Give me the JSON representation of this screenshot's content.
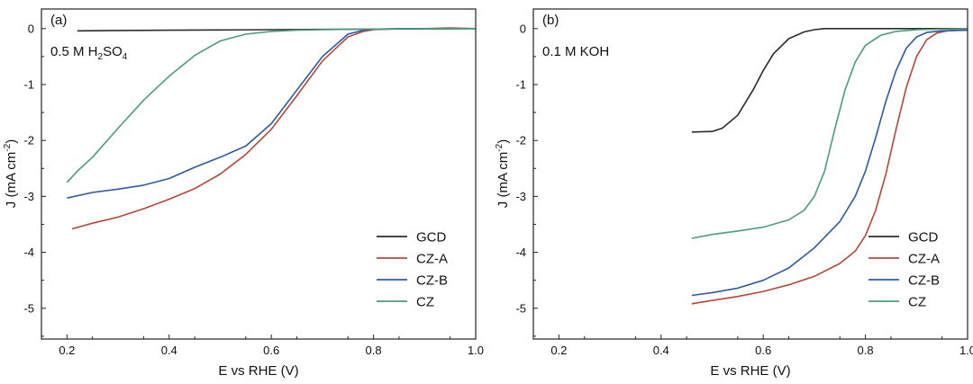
{
  "chart_data": [
    {
      "type": "line",
      "panel": "(a)",
      "annotation": {
        "base": "0.5 M H",
        "sub1": "2",
        "mid": "SO",
        "sub2": "4"
      },
      "xlabel": "E vs RHE (V)",
      "ylabel": {
        "base": "J (mA cm",
        "sup": "-2",
        "tail": ")"
      },
      "xlim": [
        0.15,
        1.0
      ],
      "ylim": [
        -5.55,
        0.35
      ],
      "xticks": [
        0.2,
        0.4,
        0.6,
        0.8,
        1.0
      ],
      "xtick_labels": [
        "0.2",
        "0.4",
        "0.6",
        "0.8",
        "1.0"
      ],
      "yticks": [
        0,
        -1,
        -2,
        -3,
        -4,
        -5
      ],
      "ytick_labels": [
        "0",
        "-1",
        "-2",
        "-3",
        "-4",
        "-5"
      ],
      "legend_position": "bottom-right",
      "series": [
        {
          "name": "GCD",
          "color": "#2b2b2b",
          "x": [
            0.22,
            0.3,
            0.4,
            0.5,
            0.6,
            0.7,
            0.8,
            0.9,
            1.0
          ],
          "y": [
            -0.04,
            -0.035,
            -0.03,
            -0.025,
            -0.02,
            -0.015,
            -0.01,
            -0.005,
            0.0
          ]
        },
        {
          "name": "CZ-A",
          "color": "#b5473a",
          "x": [
            0.21,
            0.25,
            0.3,
            0.35,
            0.4,
            0.45,
            0.5,
            0.55,
            0.6,
            0.65,
            0.7,
            0.75,
            0.78,
            0.8,
            0.85,
            0.9,
            0.95,
            1.0
          ],
          "y": [
            -3.58,
            -3.48,
            -3.37,
            -3.22,
            -3.05,
            -2.86,
            -2.6,
            -2.25,
            -1.8,
            -1.2,
            -0.58,
            -0.15,
            -0.05,
            -0.02,
            0.0,
            0.0,
            0.01,
            0.0
          ]
        },
        {
          "name": "CZ-B",
          "color": "#2f59a0",
          "x": [
            0.2,
            0.25,
            0.3,
            0.35,
            0.4,
            0.45,
            0.5,
            0.55,
            0.6,
            0.65,
            0.7,
            0.75,
            0.78,
            0.8,
            0.85,
            0.9,
            0.95,
            1.0
          ],
          "y": [
            -3.03,
            -2.93,
            -2.87,
            -2.8,
            -2.68,
            -2.48,
            -2.3,
            -2.1,
            -1.7,
            -1.1,
            -0.5,
            -0.1,
            -0.03,
            -0.01,
            0.0,
            0.0,
            0.0,
            0.0
          ]
        },
        {
          "name": "CZ",
          "color": "#4e9a7c",
          "x": [
            0.2,
            0.22,
            0.25,
            0.3,
            0.35,
            0.4,
            0.45,
            0.5,
            0.55,
            0.6,
            0.65,
            0.7,
            0.8,
            0.9,
            1.0
          ],
          "y": [
            -2.75,
            -2.55,
            -2.3,
            -1.78,
            -1.28,
            -0.85,
            -0.48,
            -0.22,
            -0.1,
            -0.05,
            -0.03,
            -0.02,
            -0.01,
            0.0,
            0.0
          ]
        }
      ]
    },
    {
      "type": "line",
      "panel": "(b)",
      "annotation": {
        "text": "0.1 M KOH"
      },
      "xlabel": "E vs RHE (V)",
      "ylabel": {
        "base": "J (mA cm",
        "sup": "-2",
        "tail": ")"
      },
      "xlim": [
        0.15,
        1.0
      ],
      "ylim": [
        -5.55,
        0.35
      ],
      "xticks": [
        0.2,
        0.4,
        0.6,
        0.8,
        1.0
      ],
      "xtick_labels": [
        "0.2",
        "0.4",
        "0.6",
        "0.8",
        "1.0"
      ],
      "yticks": [
        0,
        -1,
        -2,
        -3,
        -4,
        -5
      ],
      "ytick_labels": [
        "0",
        "-1",
        "-2",
        "-3",
        "-4",
        "-5"
      ],
      "legend_position": "bottom-right",
      "series": [
        {
          "name": "GCD",
          "color": "#2b2b2b",
          "x": [
            0.46,
            0.5,
            0.52,
            0.55,
            0.58,
            0.6,
            0.62,
            0.65,
            0.68,
            0.7,
            0.72,
            0.75,
            0.8,
            0.9,
            1.0
          ],
          "y": [
            -1.85,
            -1.84,
            -1.78,
            -1.55,
            -1.1,
            -0.75,
            -0.45,
            -0.18,
            -0.06,
            -0.02,
            0.0,
            0.0,
            0.0,
            0.0,
            0.0
          ]
        },
        {
          "name": "CZ-A",
          "color": "#b5473a",
          "x": [
            0.46,
            0.5,
            0.55,
            0.6,
            0.65,
            0.7,
            0.75,
            0.78,
            0.8,
            0.82,
            0.84,
            0.86,
            0.88,
            0.9,
            0.92,
            0.94,
            0.96,
            0.98,
            1.0
          ],
          "y": [
            -4.92,
            -4.86,
            -4.79,
            -4.7,
            -4.58,
            -4.43,
            -4.2,
            -3.98,
            -3.7,
            -3.25,
            -2.6,
            -1.8,
            -1.05,
            -0.5,
            -0.2,
            -0.08,
            -0.04,
            -0.03,
            -0.03
          ]
        },
        {
          "name": "CZ-B",
          "color": "#2f59a0",
          "x": [
            0.46,
            0.5,
            0.55,
            0.6,
            0.65,
            0.7,
            0.75,
            0.78,
            0.8,
            0.82,
            0.84,
            0.86,
            0.88,
            0.9,
            0.92,
            0.95,
            1.0
          ],
          "y": [
            -4.77,
            -4.72,
            -4.64,
            -4.5,
            -4.28,
            -3.92,
            -3.45,
            -3.0,
            -2.55,
            -1.95,
            -1.3,
            -0.75,
            -0.35,
            -0.15,
            -0.07,
            -0.04,
            -0.03
          ]
        },
        {
          "name": "CZ",
          "color": "#4e9a7c",
          "x": [
            0.46,
            0.5,
            0.55,
            0.6,
            0.65,
            0.68,
            0.7,
            0.72,
            0.74,
            0.76,
            0.78,
            0.8,
            0.83,
            0.86,
            0.9,
            1.0
          ],
          "y": [
            -3.75,
            -3.68,
            -3.62,
            -3.55,
            -3.42,
            -3.25,
            -3.0,
            -2.55,
            -1.8,
            -1.1,
            -0.6,
            -0.3,
            -0.12,
            -0.05,
            -0.02,
            0.0
          ]
        }
      ]
    }
  ]
}
